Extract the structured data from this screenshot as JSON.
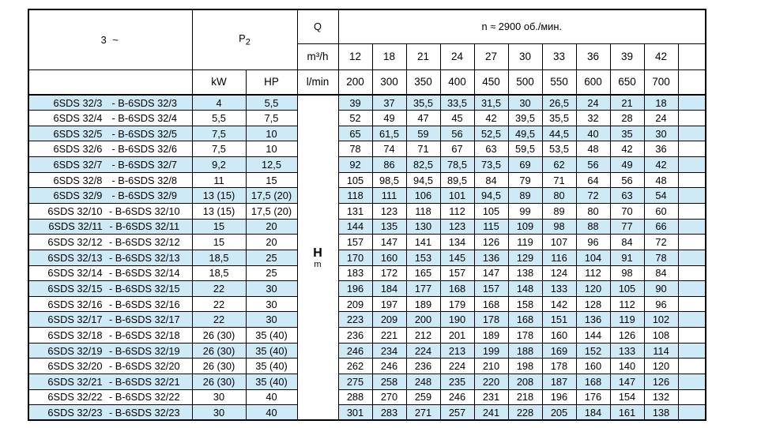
{
  "header": {
    "phase": "3 ~",
    "p_letter": "P",
    "p_sub": "2",
    "kw_label": "kW",
    "hp_label": "HP",
    "q_label": "Q",
    "q_unit1": "m³/h",
    "q_unit2": "l/min",
    "speed_label": "n ≈ 2900 об./мин.",
    "h_label": "H",
    "h_unit": "m",
    "flow_m3h": [
      "12",
      "18",
      "21",
      "24",
      "27",
      "30",
      "33",
      "36",
      "39",
      "42",
      ""
    ],
    "flow_lmin": [
      "200",
      "300",
      "350",
      "400",
      "450",
      "500",
      "550",
      "600",
      "650",
      "700",
      ""
    ]
  },
  "accent_color": "#cdeaf6",
  "rows": [
    {
      "name": "6SDS 32/3",
      "alt": "- B-6SDS 32/3",
      "kw": "4",
      "hp": "5,5",
      "values": [
        "39",
        "37",
        "35,5",
        "33,5",
        "31,5",
        "30",
        "26,5",
        "24",
        "21",
        "18"
      ]
    },
    {
      "name": "6SDS 32/4",
      "alt": "- B-6SDS 32/4",
      "kw": "5,5",
      "hp": "7,5",
      "values": [
        "52",
        "49",
        "47",
        "45",
        "42",
        "39,5",
        "35,5",
        "32",
        "28",
        "24"
      ]
    },
    {
      "name": "6SDS 32/5",
      "alt": "- B-6SDS 32/5",
      "kw": "7,5",
      "hp": "10",
      "values": [
        "65",
        "61,5",
        "59",
        "56",
        "52,5",
        "49,5",
        "44,5",
        "40",
        "35",
        "30"
      ]
    },
    {
      "name": "6SDS 32/6",
      "alt": "- B-6SDS 32/6",
      "kw": "7,5",
      "hp": "10",
      "values": [
        "78",
        "74",
        "71",
        "67",
        "63",
        "59,5",
        "53,5",
        "48",
        "42",
        "36"
      ]
    },
    {
      "name": "6SDS 32/7",
      "alt": "- B-6SDS 32/7",
      "kw": "9,2",
      "hp": "12,5",
      "values": [
        "92",
        "86",
        "82,5",
        "78,5",
        "73,5",
        "69",
        "62",
        "56",
        "49",
        "42"
      ]
    },
    {
      "name": "6SDS 32/8",
      "alt": "- B-6SDS 32/8",
      "kw": "11",
      "hp": "15",
      "values": [
        "105",
        "98,5",
        "94,5",
        "89,5",
        "84",
        "79",
        "71",
        "64",
        "56",
        "48"
      ]
    },
    {
      "name": "6SDS 32/9",
      "alt": "- B-6SDS 32/9",
      "kw": "13 (15)",
      "hp": "17,5 (20)",
      "values": [
        "118",
        "111",
        "106",
        "101",
        "94,5",
        "89",
        "80",
        "72",
        "63",
        "54"
      ]
    },
    {
      "name": "6SDS 32/10",
      "alt": "- B-6SDS 32/10",
      "kw": "13 (15)",
      "hp": "17,5 (20)",
      "values": [
        "131",
        "123",
        "118",
        "112",
        "105",
        "99",
        "89",
        "80",
        "70",
        "60"
      ]
    },
    {
      "name": "6SDS 32/11",
      "alt": "- B-6SDS 32/11",
      "kw": "15",
      "hp": "20",
      "values": [
        "144",
        "135",
        "130",
        "123",
        "115",
        "109",
        "98",
        "88",
        "77",
        "66"
      ]
    },
    {
      "name": "6SDS 32/12",
      "alt": "- B-6SDS 32/12",
      "kw": "15",
      "hp": "20",
      "values": [
        "157",
        "147",
        "141",
        "134",
        "126",
        "119",
        "107",
        "96",
        "84",
        "72"
      ]
    },
    {
      "name": "6SDS 32/13",
      "alt": "- B-6SDS 32/13",
      "kw": "18,5",
      "hp": "25",
      "values": [
        "170",
        "160",
        "153",
        "145",
        "136",
        "129",
        "116",
        "104",
        "91",
        "78"
      ]
    },
    {
      "name": "6SDS 32/14",
      "alt": "- B-6SDS 32/14",
      "kw": "18,5",
      "hp": "25",
      "values": [
        "183",
        "172",
        "165",
        "157",
        "147",
        "138",
        "124",
        "112",
        "98",
        "84"
      ]
    },
    {
      "name": "6SDS 32/15",
      "alt": "- B-6SDS 32/15",
      "kw": "22",
      "hp": "30",
      "values": [
        "196",
        "184",
        "177",
        "168",
        "157",
        "148",
        "133",
        "120",
        "105",
        "90"
      ]
    },
    {
      "name": "6SDS 32/16",
      "alt": "- B-6SDS 32/16",
      "kw": "22",
      "hp": "30",
      "values": [
        "209",
        "197",
        "189",
        "179",
        "168",
        "158",
        "142",
        "128",
        "112",
        "96"
      ]
    },
    {
      "name": "6SDS 32/17",
      "alt": "- B-6SDS 32/17",
      "kw": "22",
      "hp": "30",
      "values": [
        "223",
        "209",
        "200",
        "190",
        "178",
        "168",
        "151",
        "136",
        "119",
        "102"
      ]
    },
    {
      "name": "6SDS 32/18",
      "alt": "- B-6SDS 32/18",
      "kw": "26 (30)",
      "hp": "35 (40)",
      "values": [
        "236",
        "221",
        "212",
        "201",
        "189",
        "178",
        "160",
        "144",
        "126",
        "108"
      ]
    },
    {
      "name": "6SDS 32/19",
      "alt": "- B-6SDS 32/19",
      "kw": "26 (30)",
      "hp": "35 (40)",
      "values": [
        "246",
        "234",
        "224",
        "213",
        "199",
        "188",
        "169",
        "152",
        "133",
        "114"
      ]
    },
    {
      "name": "6SDS 32/20",
      "alt": "- B-6SDS 32/20",
      "kw": "26 (30)",
      "hp": "35 (40)",
      "values": [
        "262",
        "246",
        "236",
        "224",
        "210",
        "198",
        "178",
        "160",
        "140",
        "120"
      ]
    },
    {
      "name": "6SDS 32/21",
      "alt": "- B-6SDS 32/21",
      "kw": "26 (30)",
      "hp": "35 (40)",
      "values": [
        "275",
        "258",
        "248",
        "235",
        "220",
        "208",
        "187",
        "168",
        "147",
        "126"
      ]
    },
    {
      "name": "6SDS 32/22",
      "alt": "- B-6SDS 32/22",
      "kw": "30",
      "hp": "40",
      "values": [
        "288",
        "270",
        "259",
        "246",
        "231",
        "218",
        "196",
        "176",
        "154",
        "132"
      ]
    },
    {
      "name": "6SDS 32/23",
      "alt": "- B-6SDS 32/23",
      "kw": "30",
      "hp": "40",
      "values": [
        "301",
        "283",
        "271",
        "257",
        "241",
        "228",
        "205",
        "184",
        "161",
        "138"
      ]
    }
  ]
}
